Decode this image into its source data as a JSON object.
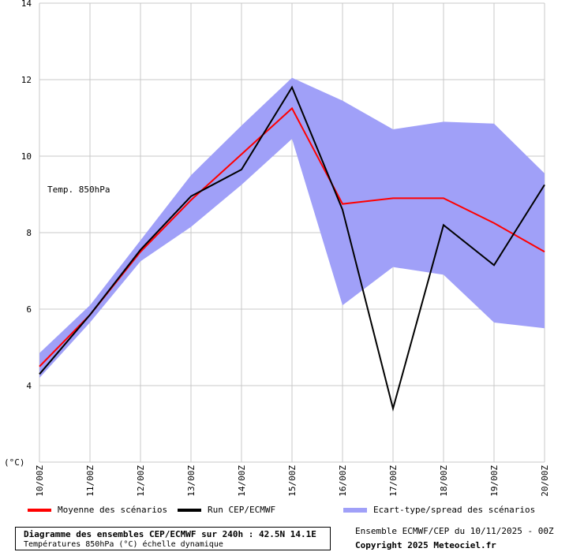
{
  "chart_data": {
    "type": "line",
    "categories": [
      "10/00Z",
      "11/00Z",
      "12/00Z",
      "13/00Z",
      "14/00Z",
      "15/00Z",
      "16/00Z",
      "17/00Z",
      "18/00Z",
      "19/00Z",
      "20/00Z"
    ],
    "ylim": [
      2,
      14
    ],
    "yticks": [
      2,
      4,
      6,
      8,
      10,
      12,
      14
    ],
    "ylabel": "(°C)",
    "annotation": "Temp. 850hPa",
    "grid": true,
    "legend_position": "bottom",
    "series": [
      {
        "name": "Moyenne des scénarios",
        "color": "#ff0000",
        "values": [
          4.5,
          5.85,
          7.5,
          8.85,
          10.05,
          11.25,
          8.75,
          8.9,
          8.9,
          8.25,
          7.5
        ]
      },
      {
        "name": "Run CEP/ECMWF",
        "color": "#000000",
        "values": [
          4.3,
          5.85,
          7.55,
          8.95,
          9.65,
          11.8,
          8.6,
          3.4,
          8.2,
          7.15,
          9.25
        ]
      }
    ],
    "band": {
      "name": "Ecart-type/spread des scénarios",
      "color": "#a0a0f8",
      "upper": [
        4.85,
        6.1,
        7.8,
        9.5,
        10.8,
        12.05,
        11.45,
        10.7,
        10.9,
        10.85,
        9.55
      ],
      "lower": [
        4.2,
        5.65,
        7.25,
        8.15,
        9.25,
        10.45,
        6.1,
        7.1,
        6.9,
        5.65,
        5.5
      ]
    }
  },
  "footer": {
    "title": "Diagramme des ensembles CEP/ECMWF sur 240h : 42.5N 14.1E",
    "subtitle": "Températures 850hPa (°C) échelle dynamique",
    "run_info": "Ensemble ECMWF/CEP du 10/11/2025 - 00Z",
    "copyright": "Copyright 2025 Meteociel.fr"
  }
}
